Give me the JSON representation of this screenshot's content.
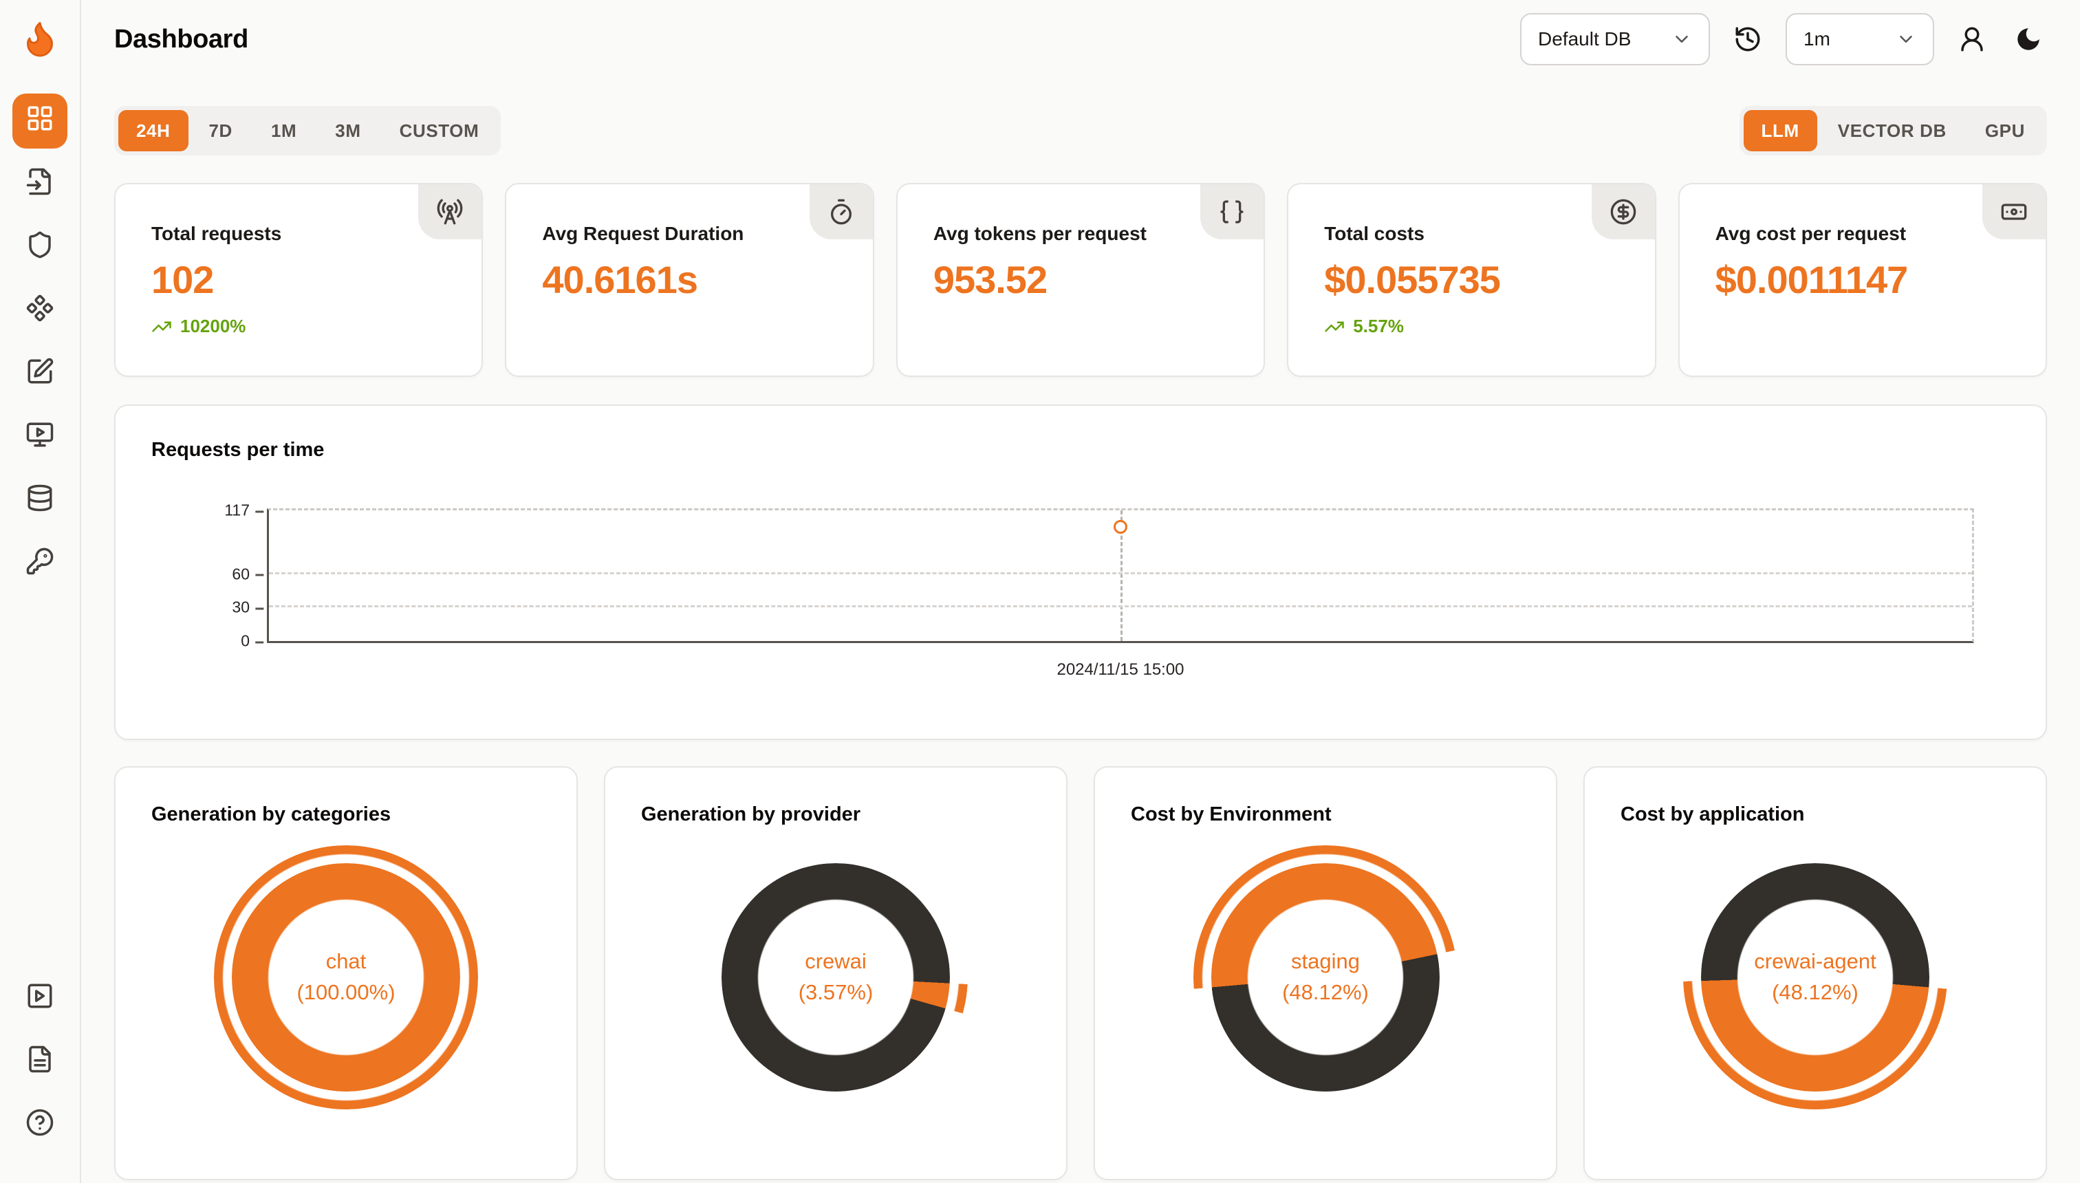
{
  "header": {
    "title": "Dashboard",
    "db_select": "Default DB",
    "interval_select": "1m"
  },
  "sidebar": {
    "items": [
      {
        "name": "dashboard",
        "icon": "layout-grid-icon",
        "active": true
      },
      {
        "name": "traces",
        "icon": "file-input-icon"
      },
      {
        "name": "security",
        "icon": "shield-icon"
      },
      {
        "name": "models",
        "icon": "component-icon"
      },
      {
        "name": "annotations",
        "icon": "square-pen-icon"
      },
      {
        "name": "playground",
        "icon": "monitor-play-icon"
      },
      {
        "name": "datasets",
        "icon": "database-icon"
      },
      {
        "name": "api-keys",
        "icon": "key-icon"
      }
    ],
    "bottom_items": [
      {
        "name": "demo",
        "icon": "square-play-icon"
      },
      {
        "name": "docs",
        "icon": "file-text-icon"
      },
      {
        "name": "help",
        "icon": "help-circle-icon"
      }
    ]
  },
  "tabs": {
    "time_ranges": [
      "24H",
      "7D",
      "1M",
      "3M",
      "CUSTOM"
    ],
    "active_time_range": "24H",
    "sources": [
      "LLM",
      "VECTOR DB",
      "GPU"
    ],
    "active_source": "LLM"
  },
  "stats": [
    {
      "label": "Total requests",
      "value": "102",
      "delta": "10200%",
      "icon": "radio-tower-icon"
    },
    {
      "label": "Avg Request Duration",
      "value": "40.6161s",
      "icon": "timer-icon"
    },
    {
      "label": "Avg tokens per request",
      "value": "953.52",
      "icon": "braces-icon"
    },
    {
      "label": "Total costs",
      "value": "$0.055735",
      "delta": "5.57%",
      "icon": "circle-dollar-icon"
    },
    {
      "label": "Avg cost per request",
      "value": "$0.0011147",
      "icon": "banknote-icon"
    }
  ],
  "colors": {
    "accent": "#ED7420",
    "dark_segment": "#332F2B",
    "positive": "#65A30D"
  },
  "chart_data": {
    "requests_per_time": {
      "type": "line",
      "title": "Requests per time",
      "x": [
        "2024/11/15 15:00"
      ],
      "values": [
        102
      ],
      "yticks": [
        0,
        30,
        60,
        117
      ],
      "ymax": 117,
      "x_frac": [
        0.5
      ],
      "grid": "dashed",
      "marker": "open-circle"
    },
    "donuts": [
      {
        "type": "pie",
        "title": "Generation by categories",
        "center_label": "chat",
        "center_pct": "(100.00%)",
        "active_pct": 100.0,
        "rest_pct": 0.0,
        "start_deg": 0,
        "active_color": "#ED7420",
        "rest_color": "#332F2B"
      },
      {
        "type": "pie",
        "title": "Generation by provider",
        "center_label": "crewai",
        "center_pct": "(3.57%)",
        "active_pct": 3.57,
        "rest_pct": 96.43,
        "start_deg": 93,
        "active_color": "#ED7420",
        "rest_color": "#332F2B"
      },
      {
        "type": "pie",
        "title": "Cost by Environment",
        "center_label": "staging",
        "center_pct": "(48.12%)",
        "active_pct": 48.12,
        "rest_pct": 51.88,
        "start_deg": 265,
        "active_color": "#ED7420",
        "rest_color": "#332F2B"
      },
      {
        "type": "pie",
        "title": "Cost by application",
        "center_label": "crewai-agent",
        "center_pct": "(48.12%)",
        "active_pct": 48.12,
        "rest_pct": 51.88,
        "start_deg": 95,
        "active_color": "#ED7420",
        "rest_color": "#332F2B"
      }
    ]
  }
}
